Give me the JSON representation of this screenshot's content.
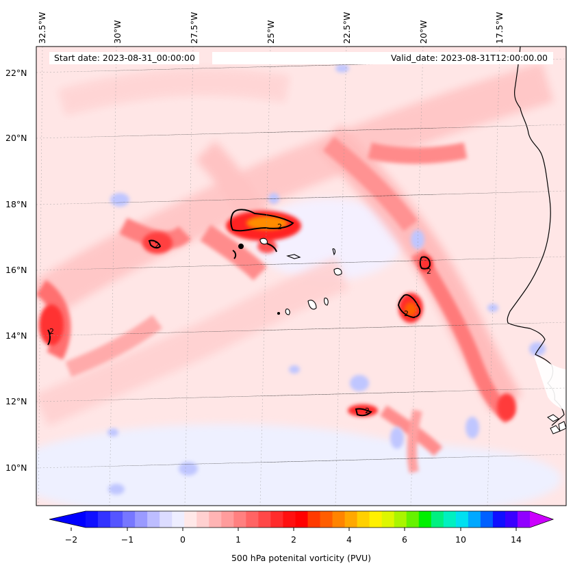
{
  "map": {
    "lon_labels": [
      "32.5°W",
      "30°W",
      "27.5°W",
      "25°W",
      "22.5°W",
      "20°W",
      "17.5°W"
    ],
    "lat_labels": [
      "22°N",
      "20°N",
      "18°N",
      "16°N",
      "14°N",
      "12°N",
      "10°N"
    ],
    "start_date": "Start date: 2023-08-31_00:00:00",
    "valid_date": "Valid_date: 2023-08-31T12:00:00.00",
    "contour_label": "2"
  },
  "colorbar": {
    "title": "500 hPa potenital vorticity (PVU)",
    "tick_labels": [
      "−2",
      "−1",
      "0",
      "1",
      "2",
      "4",
      "6",
      "10",
      "14"
    ],
    "colors": [
      "#1010ff",
      "#3232ff",
      "#5555ff",
      "#7777ff",
      "#9a9aff",
      "#bdbdff",
      "#dcdcff",
      "#eeeeff",
      "#ffe8e8",
      "#ffd0d0",
      "#ffb4b4",
      "#ff9c9c",
      "#ff8080",
      "#ff6464",
      "#ff4848",
      "#ff2c2c",
      "#ff1010",
      "#ff0000",
      "#ff3a00",
      "#ff5e00",
      "#ff8400",
      "#ffa800",
      "#ffd000",
      "#fff000",
      "#ddf700",
      "#aaf500",
      "#66f200",
      "#00f000",
      "#00f080",
      "#00f0c0",
      "#00e0f0",
      "#00a8ff",
      "#0060ff",
      "#1010ff",
      "#3a00ff",
      "#9000ff"
    ],
    "min_color": "#0000ff",
    "max_color": "#cc00ff"
  }
}
